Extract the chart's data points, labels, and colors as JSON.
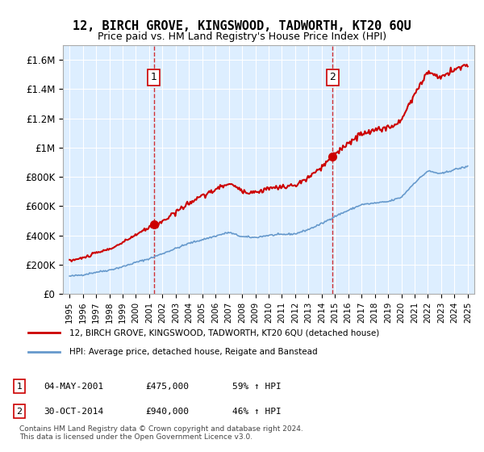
{
  "title": "12, BIRCH GROVE, KINGSWOOD, TADWORTH, KT20 6QU",
  "subtitle": "Price paid vs. HM Land Registry's House Price Index (HPI)",
  "legend_line1": "12, BIRCH GROVE, KINGSWOOD, TADWORTH, KT20 6QU (detached house)",
  "legend_line2": "HPI: Average price, detached house, Reigate and Banstead",
  "footnote": "Contains HM Land Registry data © Crown copyright and database right 2024.\nThis data is licensed under the Open Government Licence v3.0.",
  "annotation1_label": "1",
  "annotation1_date": "04-MAY-2001",
  "annotation1_price": "£475,000",
  "annotation1_hpi": "59% ↑ HPI",
  "annotation1_year": 2001.35,
  "annotation1_value": 475000,
  "annotation2_label": "2",
  "annotation2_date": "30-OCT-2014",
  "annotation2_price": "£940,000",
  "annotation2_hpi": "46% ↑ HPI",
  "annotation2_year": 2014.83,
  "annotation2_value": 940000,
  "red_line_color": "#cc0000",
  "blue_line_color": "#6699cc",
  "background_color": "#ddeeff",
  "ylim_min": 0,
  "ylim_max": 1700000,
  "ytick_values": [
    0,
    200000,
    400000,
    600000,
    800000,
    1000000,
    1200000,
    1400000,
    1600000
  ],
  "ytick_labels": [
    "£0",
    "£200K",
    "£400K",
    "£600K",
    "£800K",
    "£1M",
    "£1.2M",
    "£1.4M",
    "£1.6M"
  ],
  "xlim_min": 1994.5,
  "xlim_max": 2025.5
}
